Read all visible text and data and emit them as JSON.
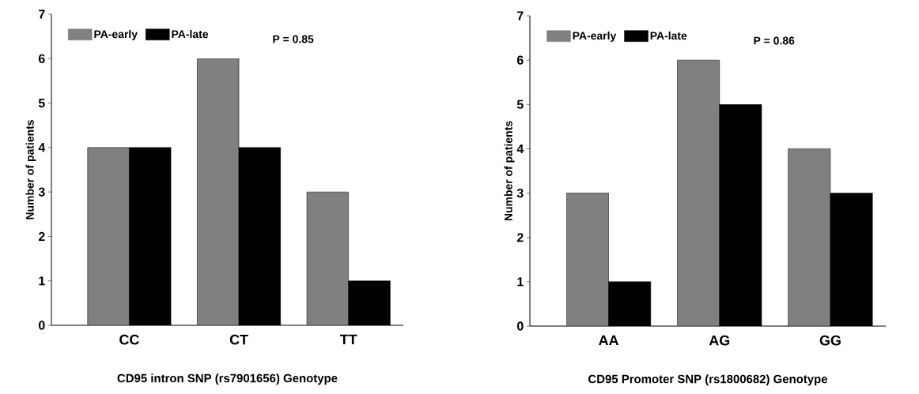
{
  "chart_data": [
    {
      "type": "bar",
      "categories": [
        "CC",
        "CT",
        "TT"
      ],
      "series": [
        {
          "name": "PA-early",
          "color": "#808080",
          "values": [
            4,
            6,
            3
          ]
        },
        {
          "name": "PA-late",
          "color": "#000000",
          "values": [
            4,
            4,
            1
          ]
        }
      ],
      "xlabel": "CD95 intron SNP (rs7901656) Genotype",
      "ylabel": "Number of patients",
      "ylim": [
        0,
        7
      ],
      "yticks": [
        0,
        1,
        2,
        3,
        4,
        5,
        6,
        7
      ],
      "legend": "top left",
      "annotations": [
        "P = 0.85"
      ]
    },
    {
      "type": "bar",
      "categories": [
        "AA",
        "AG",
        "GG"
      ],
      "series": [
        {
          "name": "PA-early",
          "color": "#808080",
          "values": [
            3,
            6,
            4
          ]
        },
        {
          "name": "PA-late",
          "color": "#000000",
          "values": [
            1,
            5,
            3
          ]
        }
      ],
      "xlabel": "CD95 Promoter SNP (rs1800682) Genotype",
      "ylabel": "Number of patients",
      "ylim": [
        0,
        7
      ],
      "yticks": [
        0,
        1,
        2,
        3,
        4,
        5,
        6,
        7
      ],
      "legend": "top left",
      "annotations": [
        "P = 0.86"
      ]
    }
  ]
}
